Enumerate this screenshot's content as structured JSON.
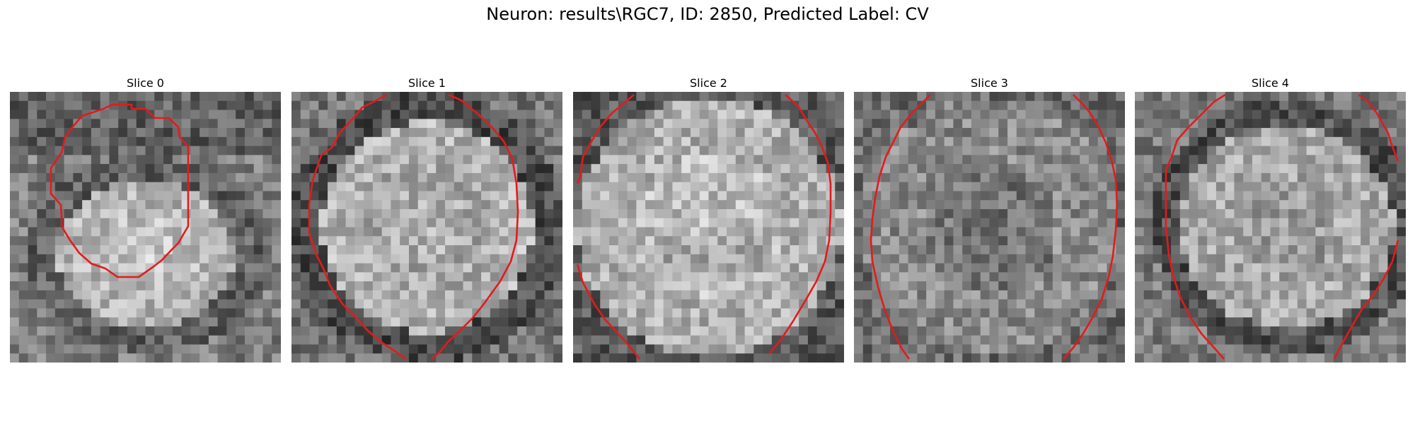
{
  "figure": {
    "title": "Neuron: results\\RGC7, ID: 2850, Predicted Label: CV"
  },
  "colors": {
    "background": "#ffffff",
    "contour": "#e41a1c",
    "image_colormap": "gray"
  },
  "slices": [
    {
      "title": "Slice 0",
      "description": "grayscale micrograph with red contour enclosing bright round cell body"
    },
    {
      "title": "Slice 1",
      "description": "grayscale micrograph with red contour around large bright cell"
    },
    {
      "title": "Slice 2",
      "description": "grayscale micrograph with partial red contour around bright cell"
    },
    {
      "title": "Slice 3",
      "description": "grayscale micrograph with partial red contour, noisy texture"
    },
    {
      "title": "Slice 4",
      "description": "grayscale micrograph with partial red contour around cell"
    }
  ]
}
